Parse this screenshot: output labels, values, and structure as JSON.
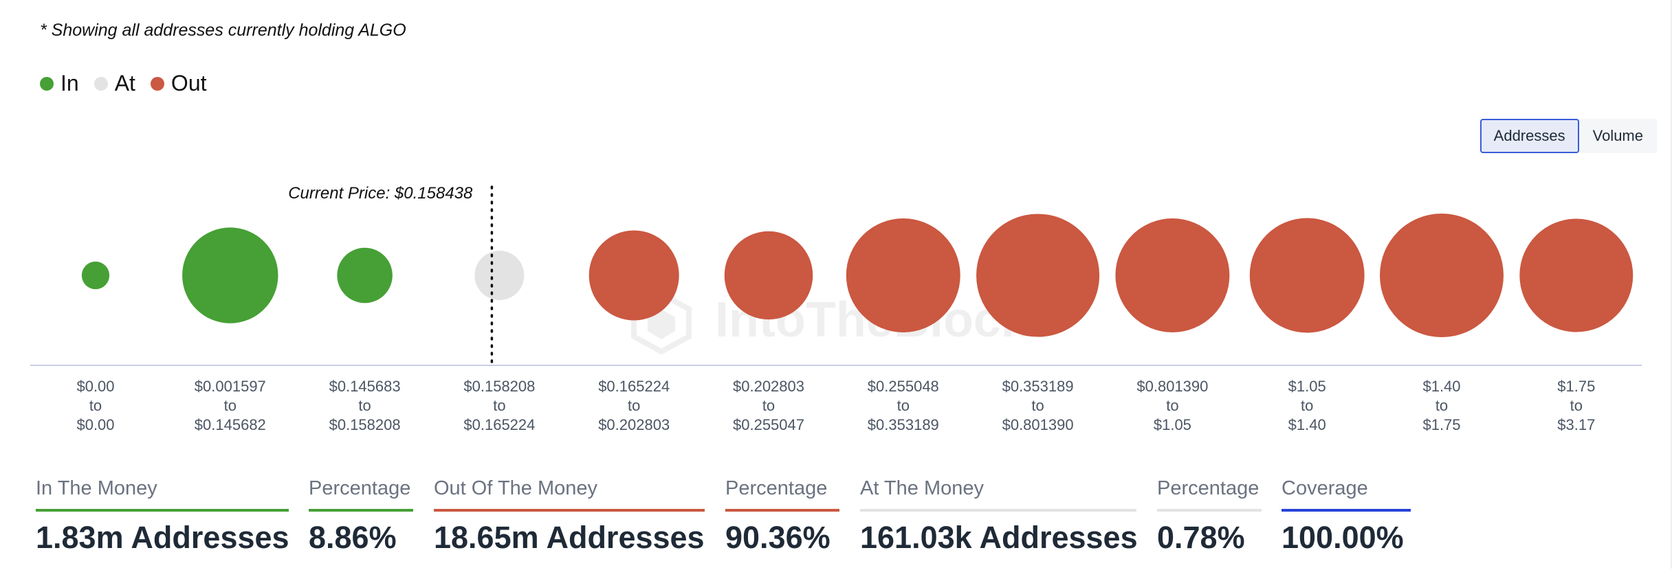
{
  "note": "* Showing all addresses currently holding ALGO",
  "legend": [
    {
      "label": "In",
      "color": "#46a035"
    },
    {
      "label": "At",
      "color": "#e3e3e3"
    },
    {
      "label": "Out",
      "color": "#cb5841"
    }
  ],
  "toggle": {
    "addresses_label": "Addresses",
    "volume_label": "Volume",
    "active": "Addresses"
  },
  "watermark": "IntoTheBlock",
  "chart_data": {
    "type": "scatter",
    "title": "",
    "current_price_label": "Current Price: $0.158438",
    "current_price_bucket": 3,
    "size_metric": "addresses",
    "colors": {
      "In": "#46a035",
      "At": "#e3e3e3",
      "Out": "#cb5841"
    },
    "buckets": [
      {
        "from": "$0.00",
        "to": "$0.00",
        "status": "In",
        "relative_size": 0.05
      },
      {
        "from": "$0.001597",
        "to": "$0.145682",
        "status": "In",
        "relative_size": 0.6
      },
      {
        "from": "$0.145683",
        "to": "$0.158208",
        "status": "In",
        "relative_size": 0.2
      },
      {
        "from": "$0.158208",
        "to": "$0.165224",
        "status": "At",
        "relative_size": 0.16
      },
      {
        "from": "$0.165224",
        "to": "$0.202803",
        "status": "Out",
        "relative_size": 0.53
      },
      {
        "from": "$0.202803",
        "to": "$0.255047",
        "status": "Out",
        "relative_size": 0.51
      },
      {
        "from": "$0.255048",
        "to": "$0.353189",
        "status": "Out",
        "relative_size": 0.85
      },
      {
        "from": "$0.353189",
        "to": "$0.801390",
        "status": "Out",
        "relative_size": 0.99
      },
      {
        "from": "$0.801390",
        "to": "$1.05",
        "status": "Out",
        "relative_size": 0.85
      },
      {
        "from": "$1.05",
        "to": "$1.40",
        "status": "Out",
        "relative_size": 0.86
      },
      {
        "from": "$1.40",
        "to": "$1.75",
        "status": "Out",
        "relative_size": 1.0
      },
      {
        "from": "$1.75",
        "to": "$3.17",
        "status": "Out",
        "relative_size": 0.84
      }
    ],
    "to_word": "to"
  },
  "stats": [
    {
      "label": "In The Money",
      "value": "1.83m Addresses",
      "color": "#46a035"
    },
    {
      "label": "Percentage",
      "value": "8.86%",
      "color": "#46a035"
    },
    {
      "label": "Out Of The Money",
      "value": "18.65m Addresses",
      "color": "#cb5841"
    },
    {
      "label": "Percentage",
      "value": "90.36%",
      "color": "#cb5841"
    },
    {
      "label": "At The Money",
      "value": "161.03k Addresses",
      "color": "#e3e3e3"
    },
    {
      "label": "Percentage",
      "value": "0.78%",
      "color": "#e3e3e3"
    },
    {
      "label": "Coverage",
      "value": "100.00%",
      "color": "#2743d8"
    }
  ]
}
